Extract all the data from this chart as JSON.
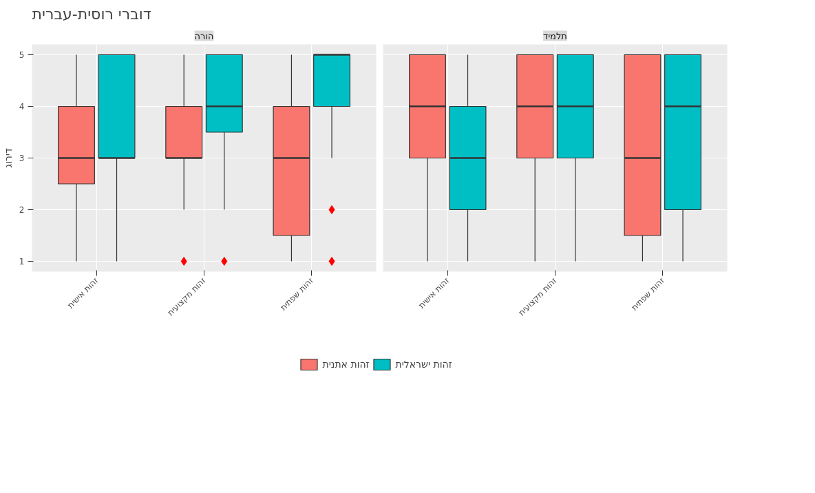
{
  "chart_data": [
    {
      "type": "box",
      "title": "דוברי רוסית-עברית",
      "subtitle": "הורה",
      "ylabel": "דירוג",
      "categories": [
        "זהות אישית",
        "זהות מקצועית",
        "זהות שפתית"
      ],
      "ylim": [
        0.8,
        5.2
      ],
      "yticks": [
        1,
        2,
        3,
        4,
        5
      ],
      "grid": true,
      "legend": "bottom",
      "marker": "diamond",
      "series": [
        {
          "name": "זהות אתנית",
          "color": "#f8766d",
          "boxes": [
            {
              "low": 1,
              "q1": 2.5,
              "median": 3,
              "q3": 4,
              "high": 5
            },
            {
              "low": 2,
              "q1": 3,
              "median": 3,
              "q3": 4,
              "high": 5,
              "outliers": [
                1
              ]
            },
            {
              "low": 1,
              "q1": 1.5,
              "median": 3,
              "q3": 4,
              "high": 5
            }
          ]
        },
        {
          "name": "זהות ישראלית",
          "color": "#00bfc4",
          "boxes": [
            {
              "low": 1,
              "q1": 3,
              "median": 3,
              "q3": 5,
              "high": 5
            },
            {
              "low": 2,
              "q1": 3.5,
              "median": 4,
              "q3": 5,
              "high": 5,
              "outliers": [
                1
              ]
            },
            {
              "low": 3,
              "q1": 4,
              "median": 5,
              "q3": 5,
              "high": 5,
              "outliers": [
                2,
                1
              ]
            }
          ]
        }
      ]
    },
    {
      "type": "box",
      "subtitle": "תלמיד",
      "categories": [
        "זהות אישית",
        "זהות מקצועית",
        "זהות שפתית"
      ],
      "ylim": [
        0.8,
        5.2
      ],
      "yticks": [
        1,
        2,
        3,
        4,
        5
      ],
      "grid": true,
      "tick_labels": "x",
      "marker": "diamond",
      "series": [
        {
          "color": "#f8766d",
          "boxes": [
            {
              "low": 1,
              "q1": 3,
              "median": 4,
              "q3": 5,
              "high": 5
            },
            {
              "low": 1,
              "q1": 3,
              "median": 4,
              "q3": 5,
              "high": 5
            },
            {
              "low": 1,
              "q1": 1.5,
              "median": 3,
              "q3": 5,
              "high": 5
            }
          ]
        },
        {
          "color": "#00bfc4",
          "boxes": [
            {
              "low": 1,
              "q1": 2,
              "median": 3,
              "q3": 4,
              "high": 5
            },
            {
              "low": 1,
              "q1": 3,
              "median": 4,
              "q3": 5,
              "high": 5
            },
            {
              "low": 1,
              "q1": 2,
              "median": 4,
              "q3": 5,
              "high": 5
            }
          ]
        }
      ]
    }
  ]
}
